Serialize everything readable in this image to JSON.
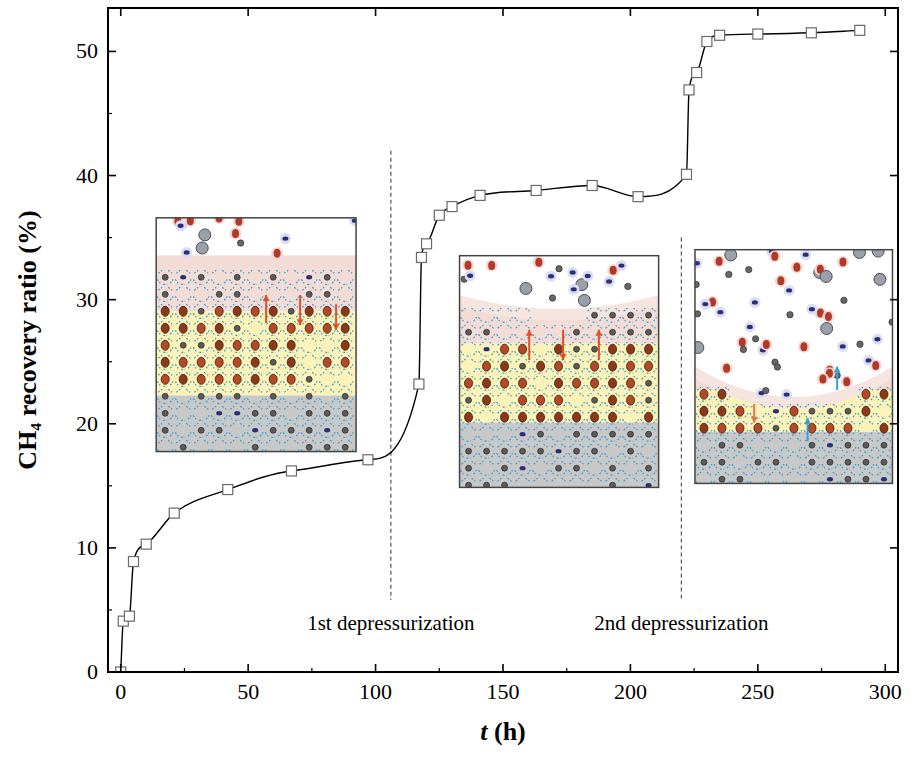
{
  "chart_data": {
    "type": "line",
    "x_label": "t (h)",
    "y_label": "CH₄ recovery ratio (%)",
    "x": [
      0,
      1,
      3.4,
      5,
      10,
      21,
      42,
      67,
      97,
      117,
      118,
      120,
      125,
      130,
      141,
      163,
      185,
      203,
      222,
      223,
      226,
      230,
      235,
      250,
      271,
      290
    ],
    "values": [
      0,
      4.1,
      4.5,
      8.9,
      10.3,
      12.8,
      14.7,
      16.2,
      17.1,
      23.2,
      33.4,
      34.5,
      36.8,
      37.5,
      38.4,
      38.8,
      39.2,
      38.3,
      40.1,
      46.9,
      48.3,
      50.8,
      51.3,
      51.4,
      51.5,
      51.7
    ],
    "color": "#000000",
    "marker": "square",
    "line_style": "solid",
    "xlim": [
      -5,
      305
    ],
    "xticks": [
      0,
      50,
      100,
      150,
      200,
      250,
      300
    ],
    "ylim": [
      0,
      53.5
    ],
    "yticks": [
      0,
      10,
      20,
      30,
      40,
      50
    ],
    "grid": false,
    "annotations": [
      {
        "text": "1st depressurization",
        "x": 106,
        "y": 42
      },
      {
        "text": "2nd depressurization",
        "x": 220,
        "y": 35
      }
    ]
  }
}
